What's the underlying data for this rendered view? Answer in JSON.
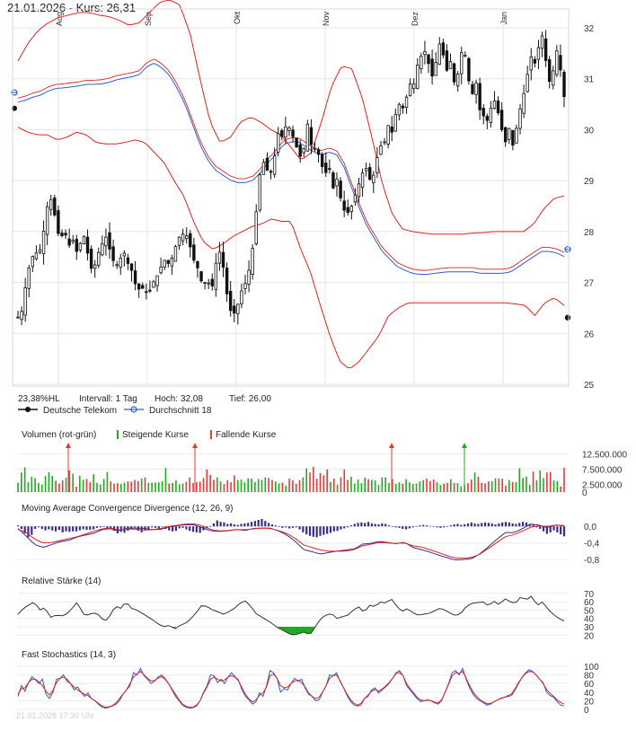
{
  "title": "21.01.2026  -  Kurs: 26,31",
  "info": {
    "range_pct": "23,38%HL",
    "interval": "Intervall: 1 Tag",
    "high": "Hoch:  32,08",
    "low": "Tief:  26,00"
  },
  "legend": {
    "series1": "Deutsche Telekom",
    "series2": "Durchschnitt 18"
  },
  "colors": {
    "up": "#22aa22",
    "down": "#e33b3b",
    "band": "#dd2222",
    "ma": "#2b5fc9",
    "macd": "#3a2a8a",
    "signal": "#dd2222",
    "osc": "#333333"
  },
  "footer": "21.01.2026 17:30 Uhr",
  "chart_data": [
    {
      "panel": "price",
      "type": "candlestick",
      "months": [
        "Aug",
        "Sep",
        "Okt",
        "Nov",
        "Dez",
        "Jan"
      ],
      "yticks": [
        "32",
        "31",
        "30",
        "29",
        "28",
        "27",
        "26",
        "25"
      ],
      "ylim": [
        25,
        32.3
      ],
      "y_anchor": [
        26.32,
        26.45,
        27.05,
        27.43,
        27.6,
        27.55,
        27.95,
        28.5,
        28.65,
        28.2,
        27.8,
        28.05,
        27.7,
        27.85,
        27.6,
        27.8,
        27.95,
        27.3,
        27.25,
        27.55,
        27.75,
        27.9,
        27.6,
        27.35,
        27.35,
        27.65,
        27.4,
        27.25,
        26.95,
        26.85,
        26.9,
        26.75,
        26.98,
        27.1,
        27.3,
        27.45,
        27.35,
        27.55,
        27.85,
        27.95,
        27.95,
        27.7,
        27.4,
        27.25,
        26.9,
        27.1,
        26.8,
        27.35,
        27.6,
        27.25,
        26.6,
        26.35,
        26.45,
        26.8,
        26.95,
        27.25,
        27.75,
        28.65,
        29.45,
        29.25,
        29.1,
        29.45,
        29.95,
        29.85,
        30.15,
        29.95,
        29.75,
        29.45,
        29.6,
        30.15,
        29.6,
        29.65,
        29.4,
        29.1,
        29.3,
        28.85,
        29.05,
        28.55,
        28.35,
        28.4,
        28.65,
        28.9,
        29.15,
        29.25,
        28.95,
        29.2,
        29.7,
        29.65,
        30.1,
        29.95,
        30.35,
        30.55,
        30.35,
        30.95,
        30.8,
        31.25,
        31.45,
        31.55,
        31.2,
        30.95,
        31.75,
        31.55,
        31.15,
        31.35,
        30.85,
        31.2,
        31.75,
        31.1,
        30.65,
        30.95,
        30.35,
        30.25,
        30.15,
        30.65,
        30.45,
        30.05,
        29.75,
        30.05,
        29.6,
        30.25,
        30.55,
        30.95,
        31.45,
        31.3,
        31.65,
        31.9,
        31.05,
        30.85,
        31.65,
        31.25,
        30.65
      ],
      "ma18": [
        30.58,
        30.62,
        30.68,
        30.72,
        30.8,
        30.85,
        30.86,
        30.88,
        30.9,
        30.93,
        30.93,
        30.94,
        30.97,
        31.02,
        31.05,
        31.08,
        31.12,
        31.28,
        31.35,
        31.25,
        31.1,
        30.85,
        30.55,
        30.15,
        29.75,
        29.45,
        29.25,
        29.15,
        29.05,
        29.0,
        29.0,
        29.05,
        29.2,
        29.4,
        29.55,
        29.75,
        29.8,
        29.8,
        29.7,
        29.6,
        29.55,
        29.6,
        29.55,
        29.3,
        28.9,
        28.5,
        28.15,
        27.9,
        27.65,
        27.5,
        27.35,
        27.28,
        27.22,
        27.2,
        27.2,
        27.22,
        27.24,
        27.25,
        27.25,
        27.25,
        27.25,
        27.22,
        27.22,
        27.22,
        27.22,
        27.25,
        27.35,
        27.45,
        27.55,
        27.65,
        27.65,
        27.62,
        27.55
      ],
      "bb_upper": [
        31.35,
        31.7,
        31.95,
        32.1,
        32.2,
        32.25,
        32.3,
        32.3,
        32.25,
        32.22,
        32.15,
        32.05,
        32.1,
        32.3,
        32.5,
        32.55,
        32.45,
        31.9,
        31.0,
        30.15,
        29.75,
        29.85,
        30.15,
        30.25,
        30.15,
        30.0,
        29.9,
        29.65,
        29.4,
        29.55,
        30.15,
        30.85,
        31.25,
        31.2,
        30.65,
        29.85,
        28.95,
        28.35,
        28.05,
        28.0,
        27.97,
        27.95,
        27.95,
        27.95,
        27.95,
        27.97,
        27.98,
        28.0,
        28.0,
        28.0,
        28.0,
        28.15,
        28.45,
        28.65,
        28.7
      ],
      "bb_lower": [
        30.05,
        29.95,
        29.9,
        29.9,
        29.8,
        29.85,
        29.95,
        29.9,
        29.75,
        29.72,
        29.72,
        29.75,
        29.8,
        29.75,
        29.55,
        29.35,
        29.0,
        28.7,
        28.2,
        27.8,
        27.65,
        27.75,
        27.9,
        28.0,
        28.1,
        28.15,
        28.25,
        28.2,
        28.2,
        27.65,
        27.2,
        26.55,
        25.95,
        25.45,
        25.3,
        25.45,
        25.7,
        25.95,
        26.35,
        26.5,
        26.6,
        26.6,
        26.6,
        26.6,
        26.6,
        26.6,
        26.6,
        26.6,
        26.6,
        26.6,
        26.6,
        26.58,
        26.55,
        26.35,
        26.6,
        26.7,
        26.55
      ]
    },
    {
      "panel": "volume",
      "type": "bar",
      "title": "Volumen (rot-grün)",
      "legend": [
        "Steigende Kurse",
        "Fallende Kurse"
      ],
      "yticks": [
        "12.500.000",
        "7.500.000",
        "2.500.000",
        "0"
      ],
      "ylim": [
        0,
        15000000
      ],
      "values": [
        3.1,
        6.4,
        8.1,
        3.3,
        5.0,
        4.6,
        3.0,
        2.4,
        5.2,
        6.5,
        5.3,
        3.7,
        2.8,
        3.9,
        4.7,
        7.1,
        6.0,
        1.8,
        5.4,
        4.0,
        4.3,
        3.2,
        5.8,
        3.0,
        2.4,
        4.3,
        6.6,
        3.5,
        2.8,
        2.9,
        2.7,
        3.1,
        3.5,
        3.4,
        4.0,
        3.6,
        4.4,
        4.8,
        3.0,
        3.1,
        3.1,
        3.2,
        3.6,
        7.9,
        2.8,
        3.0,
        3.8,
        2.5,
        2.8,
        3.4,
        4.8,
        3.0,
        3.3,
        3.4,
        4.6,
        7.4,
        5.6,
        4.0,
        4.8,
        3.5,
        2.6,
        3.9,
        3.2,
        5.5,
        3.9,
        4.1,
        3.2,
        4.5,
        4.4,
        3.3,
        4.3,
        4.0,
        4.8,
        4.6,
        4.0,
        3.5,
        2.8,
        3.1,
        2.1,
        4.4,
        3.8,
        2.7,
        3.9,
        4.8,
        7.8,
        6.4,
        8.3,
        4.4,
        6.2,
        5.5,
        7.4,
        3.3,
        4.4,
        2.4,
        4.8,
        7.4,
        4.0,
        5.0,
        2.8,
        4.1,
        2.9,
        4.7,
        4.2,
        4.0,
        3.8,
        2.3,
        4.8,
        4.8,
        3.0,
        4.2,
        2.7,
        3.2,
        2.7,
        4.2,
        3.2,
        2.6,
        2.8,
        3.5,
        3.9,
        4.4,
        3.6,
        4.1,
        3.2,
        2.3,
        2.8,
        3.0,
        4.2,
        3.0,
        2.9,
        1.9,
        2.2,
        2.9,
        4.1,
        6.4,
        5.0,
        3.0,
        2.8,
        3.5,
        3.6,
        4.5,
        4.5,
        4.4,
        2.1,
        3.9,
        3.3,
        3.3,
        7.8,
        4.6,
        5.1,
        2.3,
        6.7,
        3.9,
        7.1,
        4.6,
        6.4,
        6.6,
        3.8,
        3.6,
        1.8,
        8.0
      ]
    },
    {
      "panel": "macd",
      "type": "line",
      "title": "Moving Average Convergence Divergence (12, 26, 9)",
      "yticks": [
        "0,0",
        "-0,4",
        "-0,8"
      ],
      "ylim": [
        -0.95,
        0.2
      ],
      "macd_anchor": [
        -0.05,
        -0.24,
        -0.44,
        -0.51,
        -0.44,
        -0.37,
        -0.34,
        -0.26,
        -0.21,
        -0.17,
        -0.08,
        -0.05,
        -0.11,
        -0.04,
        -0.04,
        -0.05,
        -0.08,
        -0.07,
        -0.01,
        0.02,
        0.04,
        0.04,
        -0.04,
        -0.11,
        -0.12,
        -0.11,
        -0.07,
        -0.1,
        -0.05,
        -0.04,
        -0.04,
        -0.11,
        -0.21,
        -0.36,
        -0.56,
        -0.61,
        -0.67,
        -0.63,
        -0.6,
        -0.57,
        -0.55,
        -0.43,
        -0.41,
        -0.36,
        -0.39,
        -0.42,
        -0.38,
        -0.51,
        -0.56,
        -0.62,
        -0.69,
        -0.75,
        -0.81,
        -0.8,
        -0.78,
        -0.66,
        -0.49,
        -0.31,
        -0.15,
        -0.15,
        -0.06,
        0.06,
        0.03,
        -0.03,
        0.04,
        0.01
      ],
      "signal_anchor": [
        -0.07,
        -0.15,
        -0.31,
        -0.4,
        -0.39,
        -0.34,
        -0.3,
        -0.25,
        -0.19,
        -0.12,
        -0.06,
        -0.04,
        -0.09,
        -0.06,
        -0.07,
        -0.09,
        -0.08,
        -0.05,
        0.0,
        0.03,
        0.06,
        0.06,
        0.01,
        -0.08,
        -0.11,
        -0.1,
        -0.08,
        -0.08,
        -0.06,
        -0.04,
        -0.05,
        -0.1,
        -0.17,
        -0.29,
        -0.45,
        -0.51,
        -0.57,
        -0.6,
        -0.6,
        -0.6,
        -0.56,
        -0.47,
        -0.43,
        -0.39,
        -0.4,
        -0.41,
        -0.4,
        -0.47,
        -0.5,
        -0.56,
        -0.63,
        -0.7,
        -0.76,
        -0.77,
        -0.75,
        -0.67,
        -0.53,
        -0.39,
        -0.25,
        -0.2,
        -0.12,
        -0.02,
        0.01,
        0.0,
        0.03,
        0.02
      ],
      "histogram": [
        0.02,
        -0.05,
        -0.14,
        -0.22,
        -0.17,
        -0.05,
        -0.02,
        -0.05,
        -0.08,
        -0.06,
        -0.08,
        -0.1,
        -0.07,
        -0.12,
        -0.1,
        -0.11,
        -0.1,
        -0.1,
        -0.08,
        -0.06,
        -0.07,
        -0.07,
        -0.06,
        -0.03,
        -0.02,
        0.0,
        -0.03,
        -0.05,
        -0.09,
        -0.14,
        -0.11,
        -0.13,
        -0.09,
        -0.05,
        -0.02,
        -0.09,
        -0.12,
        -0.08,
        -0.06,
        -0.02,
        -0.03,
        -0.04,
        0.0,
        -0.05,
        -0.08,
        -0.1,
        -0.09,
        -0.04,
        -0.03,
        -0.06,
        -0.09,
        -0.11,
        -0.12,
        -0.13,
        -0.08,
        -0.04,
        -0.01,
        0.06,
        0.12,
        0.09,
        0.08,
        0.05,
        0.06,
        0.04,
        0.03,
        0.05,
        0.06,
        0.07,
        0.09,
        0.11,
        0.13,
        0.15,
        0.11,
        0.07,
        0.04,
        0.02,
        -0.01,
        -0.03,
        -0.02,
        -0.04,
        -0.03,
        -0.02,
        -0.06,
        -0.12,
        -0.16,
        -0.19,
        -0.21,
        -0.22,
        -0.19,
        -0.17,
        -0.15,
        -0.13,
        -0.1,
        -0.09,
        -0.06,
        -0.04,
        -0.02,
        0.02,
        0.05,
        0.07,
        0.08,
        0.07,
        0.09,
        0.06,
        0.05,
        0.04,
        0.06,
        0.05,
        0.02,
        0.0,
        -0.02,
        -0.03,
        -0.05,
        -0.06,
        -0.04,
        -0.02,
        0.0,
        0.02,
        0.03,
        0.02,
        0.01,
        0.0,
        -0.02,
        -0.03,
        -0.02,
        -0.01,
        0.02,
        0.04,
        0.05,
        0.03,
        0.04,
        0.06,
        0.08,
        0.06,
        0.05,
        0.07,
        0.08,
        0.07,
        0.06,
        0.04,
        0.06,
        0.08,
        0.09,
        0.08,
        0.06,
        0.05,
        0.07,
        0.09,
        0.08,
        0.05,
        0.03,
        -0.02,
        -0.05,
        -0.1,
        -0.15,
        -0.12,
        -0.08,
        -0.12,
        -0.16,
        -0.2
      ]
    },
    {
      "panel": "rsi",
      "type": "line",
      "title": "Relative Stärke (14)",
      "yticks": [
        "70",
        "60",
        "50",
        "40",
        "30",
        "20"
      ],
      "ylim": [
        15,
        73
      ],
      "anchor": [
        45,
        52,
        56,
        60,
        50,
        53,
        41,
        44,
        43,
        45,
        52,
        60,
        45,
        44,
        47,
        44,
        36,
        43,
        55,
        52,
        60,
        52,
        50,
        46,
        42,
        38,
        33,
        30,
        32,
        27,
        32,
        34,
        40,
        47,
        56,
        54,
        50,
        48,
        45,
        48,
        52,
        58,
        61,
        55,
        46,
        42,
        38,
        34,
        29,
        26,
        22,
        20,
        22,
        24,
        20,
        30,
        40,
        44,
        46,
        40,
        42,
        44,
        50,
        54,
        47,
        56,
        54,
        60,
        58,
        64,
        55,
        48,
        52,
        47,
        44,
        45,
        46,
        49,
        52,
        50,
        46,
        43,
        47,
        55,
        58,
        59,
        60,
        55,
        61,
        56,
        64,
        60,
        58,
        66,
        62,
        67,
        55,
        60,
        51,
        45,
        40,
        37
      ],
      "threshold_low": 30
    },
    {
      "panel": "stoch",
      "type": "line",
      "title": "Fast Stochastics (14, 3)",
      "yticks": [
        "100",
        "80",
        "60",
        "40",
        "20",
        "0"
      ],
      "ylim": [
        0,
        102
      ],
      "k_anchor": [
        30,
        55,
        42,
        62,
        76,
        68,
        60,
        70,
        35,
        25,
        40,
        70,
        72,
        80,
        65,
        60,
        45,
        52,
        40,
        30,
        38,
        25,
        20,
        12,
        5,
        3,
        5,
        8,
        12,
        20,
        35,
        45,
        55,
        85,
        80,
        95,
        78,
        70,
        60,
        65,
        75,
        80,
        72,
        60,
        45,
        30,
        20,
        10,
        5,
        3,
        4,
        8,
        20,
        40,
        55,
        80,
        78,
        62,
        70,
        60,
        75,
        85,
        76,
        68,
        45,
        30,
        22,
        12,
        18,
        38,
        30,
        55,
        90,
        85,
        72,
        40,
        48,
        45,
        60,
        72,
        65,
        70,
        50,
        35,
        30,
        20,
        22,
        40,
        55,
        80,
        78,
        85,
        65,
        50,
        32,
        18,
        10,
        8,
        10,
        25,
        30,
        45,
        50,
        38,
        45,
        52,
        60,
        72,
        85,
        90,
        78,
        55,
        45,
        35,
        25,
        18,
        20,
        22,
        20,
        15,
        12,
        20,
        40,
        60,
        85,
        90,
        80,
        95,
        70,
        50,
        35,
        25,
        20,
        15,
        10,
        12,
        18,
        22,
        25,
        28,
        30,
        32,
        45,
        60,
        75,
        85,
        92,
        88,
        80,
        70,
        62,
        40,
        32,
        28,
        18,
        10,
        8
      ],
      "d_anchor": [
        35,
        48,
        50,
        62,
        70,
        70,
        63,
        55,
        42,
        33,
        45,
        62,
        72,
        75,
        70,
        60,
        52,
        45,
        40,
        35,
        32,
        25,
        20,
        14,
        8,
        5,
        6,
        9,
        15,
        25,
        35,
        45,
        60,
        75,
        82,
        88,
        80,
        72,
        66,
        67,
        72,
        76,
        70,
        60,
        47,
        35,
        22,
        12,
        7,
        5,
        5,
        10,
        20,
        38,
        52,
        70,
        75,
        70,
        66,
        68,
        75,
        78,
        75,
        66,
        50,
        35,
        24,
        17,
        22,
        33,
        38,
        52,
        78,
        82,
        72,
        55,
        50,
        52,
        60,
        66,
        68,
        62,
        52,
        38,
        30,
        25,
        28,
        40,
        55,
        72,
        78,
        80,
        66,
        50,
        35,
        22,
        14,
        10,
        14,
        25,
        33,
        42,
        46,
        42,
        47,
        54,
        62,
        72,
        83,
        85,
        78,
        60,
        48,
        38,
        28,
        22,
        20,
        21,
        20,
        17,
        15,
        22,
        40,
        58,
        78,
        85,
        83,
        88,
        72,
        55,
        40,
        30,
        22,
        17,
        13,
        14,
        18,
        22,
        26,
        28,
        32,
        36,
        48,
        62,
        74,
        83,
        88,
        87,
        80,
        70,
        60,
        46,
        37,
        30,
        22,
        16,
        12
      ]
    }
  ]
}
